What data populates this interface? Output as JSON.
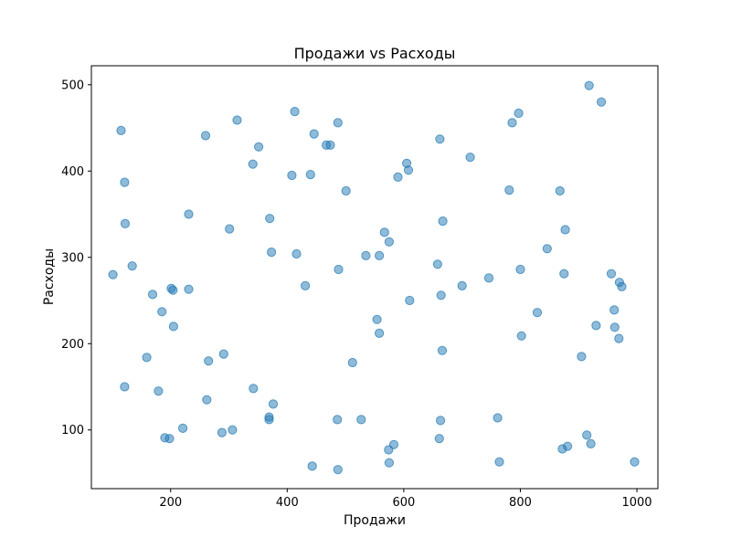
{
  "chart_data": {
    "type": "scatter",
    "title": "Продажи vs Расходы",
    "xlabel": "Продажи",
    "ylabel": "Расходы",
    "xlim": [
      64,
      1036
    ],
    "ylim": [
      32,
      522
    ],
    "xticks": [
      200,
      400,
      600,
      800,
      1000
    ],
    "yticks": [
      100,
      200,
      300,
      400,
      500
    ],
    "grid": false,
    "legend": "none",
    "marker_color": "#1f77b4",
    "marker_alpha": 0.5,
    "points": [
      {
        "x": 101,
        "y": 280
      },
      {
        "x": 115,
        "y": 447
      },
      {
        "x": 121,
        "y": 387
      },
      {
        "x": 122,
        "y": 339
      },
      {
        "x": 121,
        "y": 150
      },
      {
        "x": 134,
        "y": 290
      },
      {
        "x": 159,
        "y": 184
      },
      {
        "x": 169,
        "y": 257
      },
      {
        "x": 179,
        "y": 145
      },
      {
        "x": 185,
        "y": 237
      },
      {
        "x": 190,
        "y": 91
      },
      {
        "x": 198,
        "y": 90
      },
      {
        "x": 201,
        "y": 264
      },
      {
        "x": 204,
        "y": 262
      },
      {
        "x": 205,
        "y": 220
      },
      {
        "x": 221,
        "y": 102
      },
      {
        "x": 231,
        "y": 263
      },
      {
        "x": 231,
        "y": 350
      },
      {
        "x": 260,
        "y": 441
      },
      {
        "x": 262,
        "y": 135
      },
      {
        "x": 265,
        "y": 180
      },
      {
        "x": 288,
        "y": 97
      },
      {
        "x": 291,
        "y": 188
      },
      {
        "x": 301,
        "y": 333
      },
      {
        "x": 306,
        "y": 100
      },
      {
        "x": 314,
        "y": 459
      },
      {
        "x": 341,
        "y": 408
      },
      {
        "x": 342,
        "y": 148
      },
      {
        "x": 351,
        "y": 428
      },
      {
        "x": 369,
        "y": 115
      },
      {
        "x": 369,
        "y": 112
      },
      {
        "x": 370,
        "y": 345
      },
      {
        "x": 373,
        "y": 306
      },
      {
        "x": 376,
        "y": 130
      },
      {
        "x": 408,
        "y": 395
      },
      {
        "x": 413,
        "y": 469
      },
      {
        "x": 416,
        "y": 304
      },
      {
        "x": 431,
        "y": 267
      },
      {
        "x": 440,
        "y": 396
      },
      {
        "x": 443,
        "y": 58
      },
      {
        "x": 446,
        "y": 443
      },
      {
        "x": 467,
        "y": 430
      },
      {
        "x": 474,
        "y": 430
      },
      {
        "x": 486,
        "y": 112
      },
      {
        "x": 487,
        "y": 456
      },
      {
        "x": 488,
        "y": 286
      },
      {
        "x": 487,
        "y": 54
      },
      {
        "x": 501,
        "y": 377
      },
      {
        "x": 512,
        "y": 178
      },
      {
        "x": 527,
        "y": 112
      },
      {
        "x": 535,
        "y": 302
      },
      {
        "x": 554,
        "y": 228
      },
      {
        "x": 558,
        "y": 212
      },
      {
        "x": 558,
        "y": 302
      },
      {
        "x": 567,
        "y": 329
      },
      {
        "x": 575,
        "y": 318
      },
      {
        "x": 574,
        "y": 77
      },
      {
        "x": 575,
        "y": 62
      },
      {
        "x": 583,
        "y": 83
      },
      {
        "x": 590,
        "y": 393
      },
      {
        "x": 605,
        "y": 409
      },
      {
        "x": 608,
        "y": 401
      },
      {
        "x": 610,
        "y": 250
      },
      {
        "x": 658,
        "y": 292
      },
      {
        "x": 662,
        "y": 437
      },
      {
        "x": 661,
        "y": 90
      },
      {
        "x": 663,
        "y": 111
      },
      {
        "x": 664,
        "y": 256
      },
      {
        "x": 666,
        "y": 192
      },
      {
        "x": 667,
        "y": 342
      },
      {
        "x": 700,
        "y": 267
      },
      {
        "x": 714,
        "y": 416
      },
      {
        "x": 746,
        "y": 276
      },
      {
        "x": 761,
        "y": 114
      },
      {
        "x": 764,
        "y": 63
      },
      {
        "x": 781,
        "y": 378
      },
      {
        "x": 786,
        "y": 456
      },
      {
        "x": 797,
        "y": 467
      },
      {
        "x": 800,
        "y": 286
      },
      {
        "x": 802,
        "y": 209
      },
      {
        "x": 829,
        "y": 236
      },
      {
        "x": 846,
        "y": 310
      },
      {
        "x": 868,
        "y": 377
      },
      {
        "x": 872,
        "y": 78
      },
      {
        "x": 875,
        "y": 281
      },
      {
        "x": 877,
        "y": 332
      },
      {
        "x": 881,
        "y": 81
      },
      {
        "x": 905,
        "y": 185
      },
      {
        "x": 914,
        "y": 94
      },
      {
        "x": 918,
        "y": 499
      },
      {
        "x": 921,
        "y": 84
      },
      {
        "x": 930,
        "y": 221
      },
      {
        "x": 939,
        "y": 480
      },
      {
        "x": 956,
        "y": 281
      },
      {
        "x": 961,
        "y": 239
      },
      {
        "x": 962,
        "y": 219
      },
      {
        "x": 969,
        "y": 206
      },
      {
        "x": 970,
        "y": 271
      },
      {
        "x": 974,
        "y": 266
      },
      {
        "x": 996,
        "y": 63
      }
    ]
  }
}
